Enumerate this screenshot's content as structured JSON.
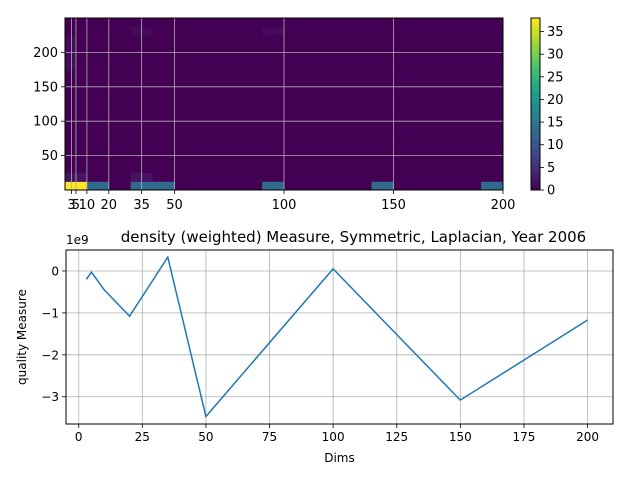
{
  "chart_data": [
    {
      "type": "heatmap",
      "x_ticks": [
        3,
        5,
        10,
        20,
        35,
        50,
        100,
        150,
        200
      ],
      "x_tick_labels": [
        "3",
        "5",
        "10",
        "20",
        "35",
        "50",
        "100",
        "150",
        "200"
      ],
      "y_ticks": [
        50,
        100,
        150,
        200
      ],
      "y_tick_labels": [
        "50",
        "100",
        "150",
        "200"
      ],
      "xlim": [
        0,
        200
      ],
      "ylim": [
        0,
        250
      ],
      "grid": true,
      "colormap": "viridis",
      "colorbar": {
        "range": [
          0,
          38
        ],
        "ticks": [
          0,
          5,
          10,
          15,
          20,
          25,
          30,
          35
        ],
        "tick_labels": [
          "0",
          "5",
          "10",
          "15",
          "20",
          "25",
          "30",
          "35"
        ]
      },
      "cells": [
        {
          "x": [
            0,
            10
          ],
          "y": [
            0,
            12
          ],
          "value": 38
        },
        {
          "x": [
            10,
            20
          ],
          "y": [
            0,
            12
          ],
          "value": 13
        },
        {
          "x": [
            30,
            50
          ],
          "y": [
            0,
            12
          ],
          "value": 13
        },
        {
          "x": [
            90,
            100
          ],
          "y": [
            0,
            12
          ],
          "value": 13
        },
        {
          "x": [
            140,
            150
          ],
          "y": [
            0,
            12
          ],
          "value": 13
        },
        {
          "x": [
            190,
            200
          ],
          "y": [
            0,
            12
          ],
          "value": 13
        },
        {
          "x": [
            30,
            40
          ],
          "y": [
            12,
            25
          ],
          "value": 2
        },
        {
          "x": [
            0,
            10
          ],
          "y": [
            12,
            25
          ],
          "value": 2
        },
        {
          "x": [
            30,
            40
          ],
          "y": [
            225,
            237
          ],
          "value": 1
        },
        {
          "x": [
            90,
            100
          ],
          "y": [
            225,
            237
          ],
          "value": 1
        },
        {
          "x": [
            0,
            5
          ],
          "y": [
            175,
            225
          ],
          "value": 1
        }
      ]
    },
    {
      "type": "line",
      "title": "density (weighted) Measure, Symmetric, Laplacian, Year 2006",
      "xlabel": "Dims",
      "ylabel": "quality Measure",
      "offset_label": "1e9",
      "xlim": [
        -5,
        210
      ],
      "ylim": [
        -3.65,
        0.5
      ],
      "x_ticks": [
        0,
        25,
        50,
        75,
        100,
        125,
        150,
        175,
        200
      ],
      "x_tick_labels": [
        "0",
        "25",
        "50",
        "75",
        "100",
        "125",
        "150",
        "175",
        "200"
      ],
      "y_ticks": [
        0,
        -1,
        -2,
        -3
      ],
      "y_tick_labels": [
        "0",
        "−1",
        "−2",
        "−3"
      ],
      "grid": true,
      "series": [
        {
          "color": "#1f77b4",
          "x": [
            3,
            5,
            10,
            20,
            35,
            50,
            100,
            150,
            200
          ],
          "y": [
            -0.2,
            -0.03,
            -0.45,
            -1.08,
            0.33,
            -3.47,
            0.05,
            -3.08,
            -1.17
          ]
        }
      ]
    }
  ]
}
